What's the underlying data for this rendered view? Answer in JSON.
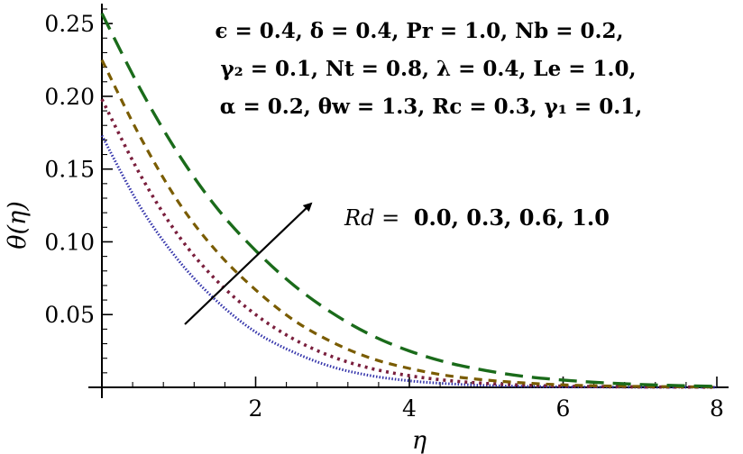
{
  "chart_data": {
    "type": "line",
    "title": "",
    "xlabel": "η",
    "ylabel": "θ(η)",
    "xlim": [
      0,
      8
    ],
    "ylim": [
      0,
      0.26
    ],
    "xticks": [
      "2",
      "4",
      "6",
      "8"
    ],
    "yticks": [
      "0.05",
      "0.10",
      "0.15",
      "0.20",
      "0.25"
    ],
    "grid": false,
    "legend": "none",
    "parameter_lines": [
      "ϵ = 0.4,  δ = 0.4,  Pr = 1.0,  Nb = 0.2,",
      "γ₂  = 0.1,  Nt = 0.8,  λ = 0.4,  Le = 1.0,",
      "α = 0.2,  θw = 1.3,  Rc = 0.3,  γ₁ = 0.1,"
    ],
    "annotation": {
      "label": "Rd =",
      "values": "0.0,  0.3,  0.6,  1.0"
    },
    "x": [
      0,
      0.5,
      1,
      1.5,
      2,
      2.5,
      3,
      3.5,
      4,
      4.5,
      5,
      5.5,
      6,
      6.5,
      7,
      7.5,
      8
    ],
    "series": [
      {
        "color": "#3333aa",
        "style": "dotted-fine",
        "values": [
          0.173,
          0.124,
          0.087,
          0.059,
          0.038,
          0.024,
          0.014,
          0.008,
          0.0045,
          0.0025,
          0.0013,
          0.0007,
          0.0003,
          0.0002,
          0.0001,
          0.0001,
          0.0001
        ]
      },
      {
        "color": "#7a1f3d",
        "style": "dotted",
        "values": [
          0.198,
          0.146,
          0.104,
          0.073,
          0.05,
          0.033,
          0.021,
          0.013,
          0.008,
          0.0047,
          0.0027,
          0.0015,
          0.0008,
          0.0005,
          0.0003,
          0.0002,
          0.0001
        ]
      },
      {
        "color": "#7a5c00",
        "style": "dashed",
        "values": [
          0.225,
          0.172,
          0.127,
          0.093,
          0.067,
          0.046,
          0.031,
          0.02,
          0.013,
          0.008,
          0.005,
          0.003,
          0.0017,
          0.001,
          0.0006,
          0.0004,
          0.0002
        ]
      },
      {
        "color": "#1a6b1a",
        "style": "long-dashed",
        "values": [
          0.257,
          0.205,
          0.16,
          0.123,
          0.094,
          0.07,
          0.051,
          0.036,
          0.025,
          0.017,
          0.0115,
          0.0075,
          0.005,
          0.0032,
          0.002,
          0.0012,
          0.0007
        ]
      }
    ]
  }
}
